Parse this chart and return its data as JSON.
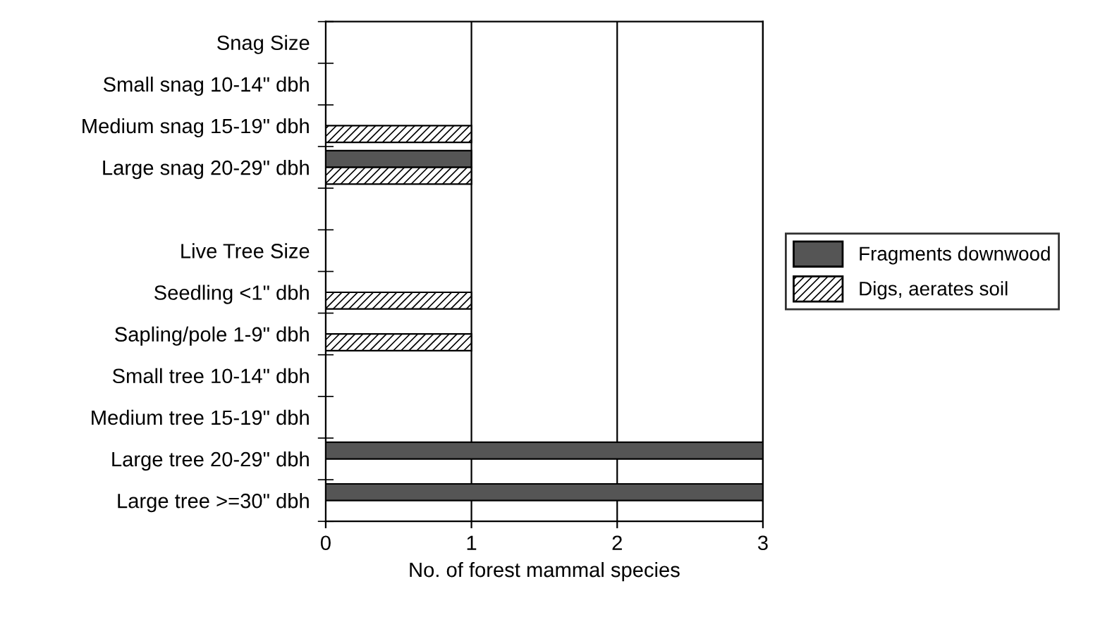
{
  "chart_data": {
    "type": "bar",
    "orientation": "horizontal",
    "xlabel": "No. of forest mammal species",
    "categories": [
      "Snag Size",
      "Small snag 10-14\" dbh",
      "Medium snag 15-19\" dbh",
      "Large snag 20-29\" dbh",
      null,
      "Live Tree Size",
      "Seedling <1\" dbh",
      "Sapling/pole 1-9\" dbh",
      "Small tree 10-14\" dbh",
      "Medium tree 15-19\" dbh",
      "Large tree 20-29\" dbh",
      "Large tree >=30\" dbh"
    ],
    "series": [
      {
        "name": "Fragments downwood",
        "color": "#555555",
        "values": [
          null,
          null,
          null,
          1,
          null,
          null,
          null,
          null,
          null,
          null,
          3,
          3
        ]
      },
      {
        "name": "Digs, aerates soil",
        "color": "#000000",
        "values": [
          null,
          null,
          1,
          1,
          null,
          null,
          1,
          1,
          null,
          null,
          null,
          null
        ]
      }
    ],
    "xlim": [
      0,
      3
    ],
    "xticks": [
      0,
      1,
      2,
      3
    ],
    "grid": "x",
    "legend": "right"
  }
}
